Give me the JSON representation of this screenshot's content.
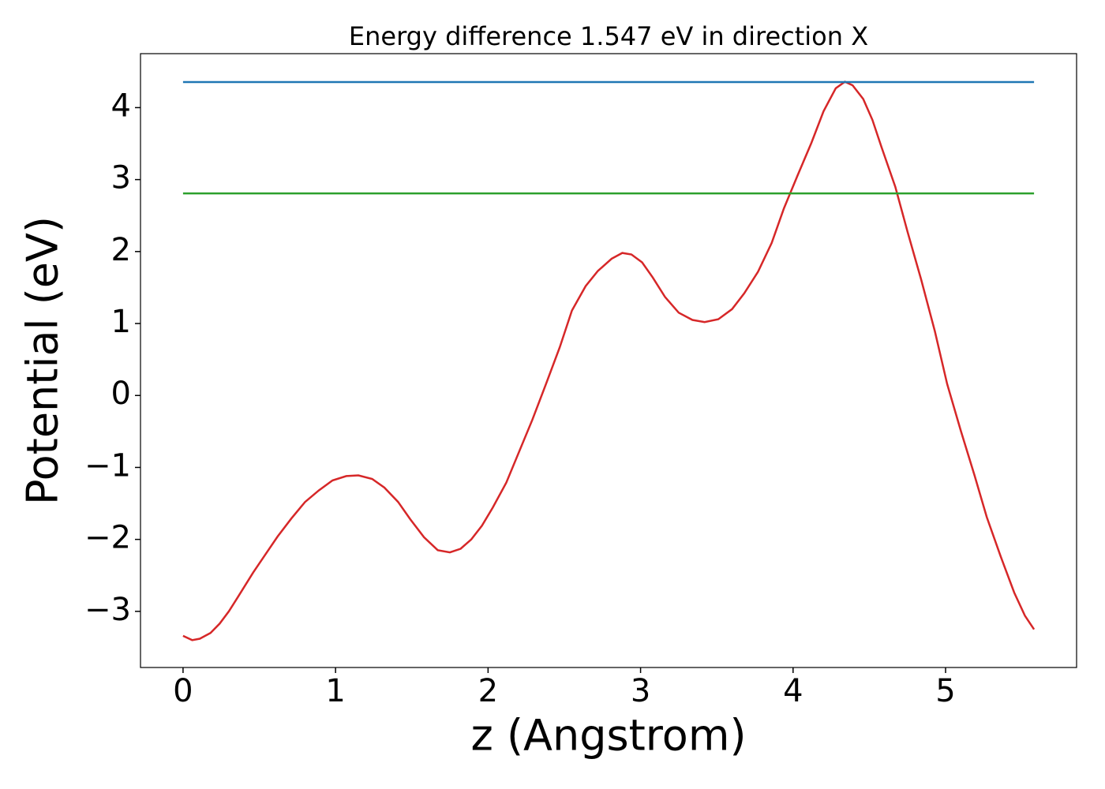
{
  "chart_data": {
    "type": "line",
    "title": "Energy difference 1.547 eV in direction X",
    "x_label": "z (Angstrom)",
    "y_label": "Potential (eV)",
    "xlim": [
      -0.279,
      5.859
    ],
    "ylim": [
      -3.78,
      4.75
    ],
    "xticks": [
      0,
      1,
      2,
      3,
      4,
      5
    ],
    "yticks": [
      {
        "value": -3,
        "label": "−3"
      },
      {
        "value": -2,
        "label": "−2"
      },
      {
        "value": -1,
        "label": "−1"
      },
      0,
      1,
      2,
      3,
      4
    ],
    "grid": false,
    "series": [
      {
        "color": "#d62728",
        "x": [
          0,
          0.06,
          0.11,
          0.18,
          0.24,
          0.3,
          0.36,
          0.46,
          0.54,
          0.62,
          0.71,
          0.8,
          0.89,
          0.98,
          1.07,
          1.15,
          1.24,
          1.32,
          1.41,
          1.49,
          1.58,
          1.67,
          1.75,
          1.82,
          1.89,
          1.96,
          2.03,
          2.12,
          2.2,
          2.29,
          2.38,
          2.47,
          2.55,
          2.64,
          2.72,
          2.81,
          2.88,
          2.94,
          3.01,
          3.08,
          3.16,
          3.25,
          3.34,
          3.42,
          3.51,
          3.6,
          3.68,
          3.77,
          3.86,
          3.94,
          4.03,
          4.12,
          4.2,
          4.28,
          4.34,
          4.39,
          4.46,
          4.52,
          4.58,
          4.67,
          4.75,
          4.84,
          4.93,
          5.01,
          5.1,
          5.19,
          5.27,
          5.36,
          5.45,
          5.52,
          5.58
        ],
        "values": [
          -3.34,
          -3.4,
          -3.38,
          -3.3,
          -3.17,
          -3.0,
          -2.8,
          -2.46,
          -2.21,
          -1.96,
          -1.71,
          -1.48,
          -1.32,
          -1.18,
          -1.12,
          -1.11,
          -1.16,
          -1.28,
          -1.48,
          -1.72,
          -1.97,
          -2.15,
          -2.18,
          -2.13,
          -2.0,
          -1.81,
          -1.56,
          -1.21,
          -0.8,
          -0.34,
          0.16,
          0.67,
          1.18,
          1.52,
          1.73,
          1.9,
          1.98,
          1.96,
          1.85,
          1.64,
          1.37,
          1.15,
          1.05,
          1.02,
          1.06,
          1.2,
          1.42,
          1.72,
          2.12,
          2.6,
          3.06,
          3.51,
          3.95,
          4.27,
          4.36,
          4.31,
          4.12,
          3.83,
          3.45,
          2.9,
          2.28,
          1.61,
          0.89,
          0.16,
          -0.49,
          -1.11,
          -1.69,
          -2.23,
          -2.74,
          -3.06,
          -3.25
        ]
      },
      {
        "color": "#1f77b4",
        "x": [
          0,
          5.58
        ],
        "values": [
          4.355,
          4.355
        ]
      },
      {
        "color": "#2ca02c",
        "x": [
          0,
          5.58
        ],
        "values": [
          2.808,
          2.808
        ]
      }
    ]
  }
}
